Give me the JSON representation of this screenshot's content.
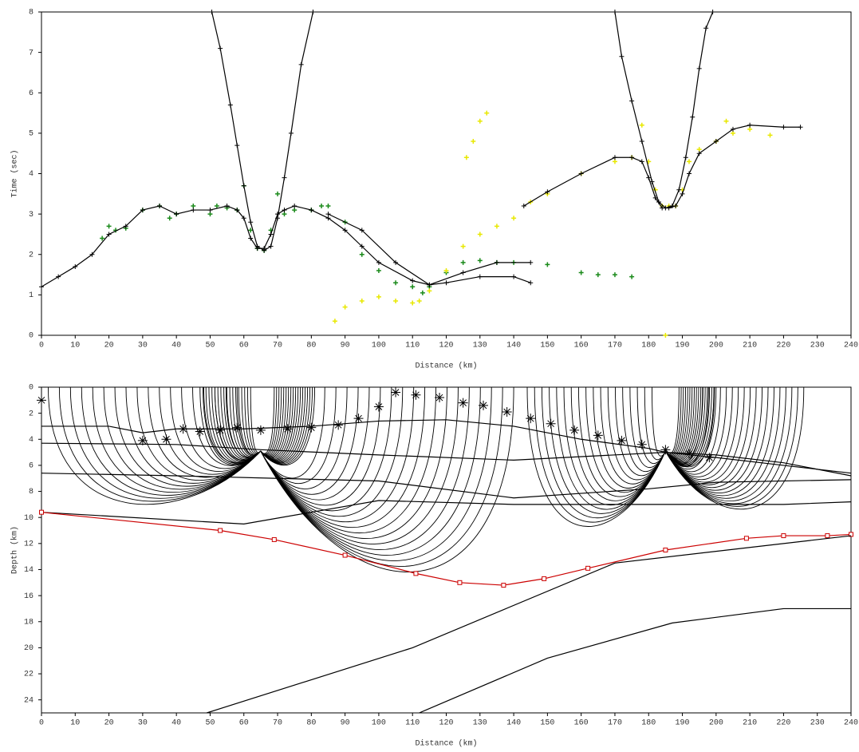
{
  "chart_data": [
    {
      "type": "traveltime",
      "x_label": "Distance (km)",
      "y_label": "Time (sec)",
      "xlim": [
        0,
        240
      ],
      "xticks": [
        0,
        10,
        20,
        30,
        40,
        50,
        60,
        70,
        80,
        90,
        100,
        110,
        120,
        130,
        140,
        150,
        160,
        170,
        180,
        190,
        200,
        210,
        220,
        230,
        240
      ],
      "ylim": [
        0,
        8
      ],
      "yticks": [
        0,
        1,
        2,
        3,
        4,
        5,
        6,
        7,
        8
      ],
      "series": [
        {
          "name": "observed-green",
          "style": "scatter",
          "color": "#1a8a1a",
          "x": [
            18,
            20,
            22,
            25,
            30,
            35,
            38,
            40,
            45,
            50,
            52,
            55,
            58,
            60,
            62,
            64,
            66,
            68,
            70,
            72,
            75,
            80,
            83,
            85,
            90,
            95,
            100,
            105,
            110,
            113,
            115,
            120,
            125,
            130,
            135,
            140,
            150,
            160,
            165,
            170,
            175
          ],
          "values": [
            2.4,
            2.7,
            2.6,
            2.65,
            3.1,
            3.2,
            2.9,
            3.0,
            3.2,
            3.0,
            3.2,
            3.15,
            3.1,
            3.7,
            2.6,
            2.15,
            2.1,
            2.6,
            3.5,
            3.0,
            3.1,
            3.1,
            3.2,
            3.2,
            2.8,
            2.0,
            1.6,
            1.3,
            1.2,
            1.05,
            1.2,
            1.55,
            1.8,
            1.85,
            1.8,
            1.8,
            1.75,
            1.55,
            1.5,
            1.5,
            1.45
          ]
        },
        {
          "name": "observed-yellow",
          "style": "scatter",
          "color": "#e8e800",
          "x": [
            87,
            90,
            95,
            100,
            105,
            110,
            112,
            115,
            120,
            125,
            126,
            128,
            130,
            132,
            130,
            135,
            140,
            145,
            150,
            160,
            170,
            175,
            178,
            180,
            182,
            184,
            186,
            188,
            190,
            192,
            195,
            200,
            203,
            205,
            210,
            216,
            185
          ],
          "values": [
            0.35,
            0.7,
            0.85,
            0.95,
            0.85,
            0.8,
            0.85,
            1.1,
            1.6,
            2.2,
            4.4,
            4.8,
            5.3,
            5.5,
            2.5,
            2.7,
            2.9,
            3.3,
            3.5,
            4.0,
            4.3,
            4.4,
            5.2,
            4.3,
            3.6,
            3.2,
            3.2,
            3.2,
            3.6,
            4.3,
            4.6,
            4.8,
            5.3,
            5.0,
            5.1,
            4.95,
            0
          ]
        },
        {
          "name": "calc-left",
          "style": "line",
          "color": "#000000",
          "x": [
            0,
            5,
            10,
            15,
            20,
            25,
            30,
            35,
            40,
            45,
            50,
            55,
            58,
            60,
            62,
            64,
            66,
            68,
            70,
            72,
            75,
            80,
            85,
            90,
            95,
            100,
            110,
            115,
            120,
            130,
            140,
            145
          ],
          "values": [
            1.2,
            1.45,
            1.7,
            2.0,
            2.5,
            2.7,
            3.1,
            3.2,
            3.0,
            3.1,
            3.1,
            3.2,
            3.1,
            2.9,
            2.4,
            2.15,
            2.15,
            2.5,
            3.0,
            3.1,
            3.2,
            3.1,
            2.9,
            2.6,
            2.2,
            1.8,
            1.35,
            1.25,
            1.3,
            1.45,
            1.45,
            1.3
          ]
        },
        {
          "name": "calc-mid",
          "style": "line",
          "color": "#000000",
          "x": [
            85,
            95,
            105,
            115,
            125,
            135,
            145
          ],
          "values": [
            3.0,
            2.6,
            1.8,
            1.25,
            1.55,
            1.8,
            1.8
          ]
        },
        {
          "name": "calc-right",
          "style": "line",
          "color": "#000000",
          "x": [
            143,
            150,
            160,
            170,
            175,
            178,
            180,
            182,
            184,
            186,
            188,
            190,
            192,
            195,
            200,
            205,
            210,
            220,
            225
          ],
          "values": [
            3.2,
            3.55,
            4.0,
            4.4,
            4.4,
            4.3,
            3.9,
            3.4,
            3.15,
            3.15,
            3.2,
            3.5,
            4.0,
            4.5,
            4.8,
            5.1,
            5.2,
            5.15,
            5.15
          ]
        },
        {
          "name": "calc-v-left",
          "style": "line",
          "color": "#000000",
          "x": [
            50.5,
            53,
            56,
            58,
            60,
            62,
            64,
            66,
            68,
            70,
            72,
            74,
            77,
            80.5
          ],
          "values": [
            8,
            7.1,
            5.7,
            4.7,
            3.7,
            2.8,
            2.2,
            2.1,
            2.2,
            2.9,
            3.9,
            5.0,
            6.7,
            8
          ]
        },
        {
          "name": "calc-v-right",
          "style": "line",
          "color": "#000000",
          "x": [
            170,
            172,
            175,
            178,
            181,
            183,
            185,
            187,
            189,
            191,
            193,
            195,
            197,
            199
          ],
          "values": [
            8,
            6.9,
            5.8,
            4.8,
            3.8,
            3.3,
            3.15,
            3.2,
            3.6,
            4.4,
            5.4,
            6.6,
            7.6,
            8
          ]
        }
      ]
    },
    {
      "type": "raytrace",
      "x_label": "Distance (km)",
      "y_label": "Depth (km)",
      "xlim": [
        0,
        240
      ],
      "xticks": [
        0,
        10,
        20,
        30,
        40,
        50,
        60,
        70,
        80,
        90,
        100,
        110,
        120,
        130,
        140,
        150,
        160,
        170,
        180,
        190,
        200,
        210,
        220,
        230,
        240
      ],
      "ylim": [
        0,
        25
      ],
      "yticks": [
        0,
        2,
        4,
        6,
        8,
        10,
        12,
        14,
        16,
        18,
        20,
        22,
        24
      ],
      "series": [
        {
          "name": "boundary-1",
          "color": "#000000",
          "x": [
            0,
            20,
            30,
            40,
            60,
            80,
            100,
            120,
            140,
            160,
            180,
            185,
            200,
            220,
            240
          ],
          "values": [
            3,
            3,
            3.5,
            3.2,
            3.2,
            3,
            2.6,
            2.5,
            3.0,
            4.0,
            4.7,
            5.0,
            5.2,
            5.8,
            6.8
          ]
        },
        {
          "name": "boundary-2",
          "color": "#000000",
          "x": [
            0,
            40,
            65,
            100,
            140,
            185,
            200,
            220,
            240
          ],
          "values": [
            4.3,
            4.4,
            4.8,
            5.2,
            5.6,
            5.0,
            5.4,
            6.0,
            6.6
          ]
        },
        {
          "name": "boundary-3",
          "color": "#000000",
          "x": [
            0,
            40,
            70,
            100,
            140,
            180,
            200,
            240
          ],
          "values": [
            6.6,
            6.8,
            7.0,
            7.2,
            8.5,
            7.8,
            7.3,
            7.1
          ]
        },
        {
          "name": "boundary-4",
          "color": "#000000",
          "x": [
            0,
            60,
            100,
            140,
            180,
            220,
            240
          ],
          "values": [
            9.6,
            10.5,
            8.7,
            9.0,
            9.0,
            9.0,
            8.8
          ]
        },
        {
          "name": "boundary-red",
          "color": "#cc0000",
          "markers": true,
          "x": [
            0,
            53,
            69,
            90,
            111,
            124,
            137,
            149,
            162,
            185,
            209,
            220,
            233,
            240
          ],
          "values": [
            9.6,
            11,
            11.7,
            12.9,
            14.3,
            15,
            15.2,
            14.7,
            13.9,
            12.5,
            11.6,
            11.4,
            11.4,
            11.3
          ]
        },
        {
          "name": "boundary-deep-1",
          "color": "#000000",
          "x": [
            49,
            110,
            170,
            240
          ],
          "values": [
            25,
            20,
            13.5,
            11.4
          ]
        },
        {
          "name": "boundary-deep-2",
          "color": "#000000",
          "x": [
            112,
            150,
            187,
            220,
            240
          ],
          "values": [
            25,
            20.8,
            18.1,
            17,
            17
          ]
        },
        {
          "name": "stations",
          "color": "#000000",
          "style": "stars",
          "x": [
            0,
            30,
            37,
            42,
            47,
            53,
            58,
            65,
            73,
            80,
            88,
            94,
            100,
            105,
            111,
            118,
            125,
            131,
            138,
            145,
            151,
            158,
            165,
            172,
            178,
            185,
            192,
            198
          ],
          "values": [
            1,
            4.1,
            4,
            3.2,
            3.4,
            3.3,
            3.1,
            3.3,
            3.2,
            3.1,
            2.9,
            2.4,
            1.5,
            0.4,
            0.6,
            0.8,
            1.2,
            1.4,
            1.9,
            2.4,
            2.8,
            3.3,
            3.7,
            4.1,
            4.4,
            4.8,
            5.1,
            5.4
          ]
        }
      ],
      "fans": [
        {
          "source": [
            65,
            4.9
          ],
          "reach": [
            2,
            58
          ],
          "max_depth": 11
        },
        {
          "source": [
            65,
            4.9
          ],
          "reach": [
            47,
            62
          ],
          "max_depth": 6.8
        },
        {
          "source": [
            65,
            4.9
          ],
          "reach": [
            69,
            81
          ],
          "max_depth": 6.8
        },
        {
          "source": [
            65,
            4.9
          ],
          "reach": [
            84,
            140
          ],
          "max_depth": 18
        },
        {
          "source": [
            185,
            4.9
          ],
          "reach": [
            144,
            181
          ],
          "max_depth": 13.3
        },
        {
          "source": [
            185,
            4.9
          ],
          "reach": [
            189,
            200
          ],
          "max_depth": 7
        },
        {
          "source": [
            185,
            4.9
          ],
          "reach": [
            196,
            226
          ],
          "max_depth": 11.5
        }
      ]
    }
  ]
}
